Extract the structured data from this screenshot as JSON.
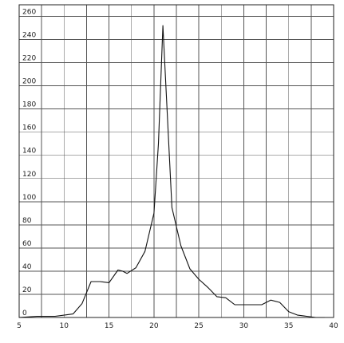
{
  "chart_data": {
    "type": "line",
    "title": "",
    "xlabel": "",
    "ylabel": "",
    "xlim": [
      5,
      40
    ],
    "ylim": [
      0,
      270
    ],
    "grid": true,
    "x_ticks": [
      5,
      10,
      15,
      20,
      25,
      30,
      35,
      40
    ],
    "x_tick_labels": [
      "5",
      "10",
      "15",
      "20",
      "25",
      "30",
      "35",
      "40"
    ],
    "y_ticks": [
      0,
      20,
      40,
      60,
      80,
      100,
      120,
      140,
      160,
      180,
      200,
      220,
      240,
      260
    ],
    "y_tick_labels": [
      "0",
      "20",
      "40",
      "60",
      "80",
      "100",
      "120",
      "140",
      "160",
      "180",
      "200",
      "220",
      "240",
      "260"
    ],
    "series": [
      {
        "name": "",
        "x": [
          5,
          7,
          8,
          9,
          10,
          11,
          12,
          13,
          14,
          15,
          16,
          16.5,
          17,
          18,
          19,
          20,
          20.5,
          21,
          22,
          23,
          24,
          25,
          26,
          27,
          28,
          29,
          30,
          31,
          32,
          33,
          34,
          35,
          36,
          37,
          38,
          39
        ],
        "y": [
          0,
          1,
          1,
          1,
          2,
          3,
          12,
          31,
          31,
          30,
          41,
          40,
          38,
          43,
          57,
          90,
          150,
          252,
          95,
          62,
          42,
          33,
          26,
          18,
          17,
          11,
          11,
          11,
          11,
          15,
          13,
          5,
          2,
          1,
          0,
          0
        ]
      }
    ]
  }
}
